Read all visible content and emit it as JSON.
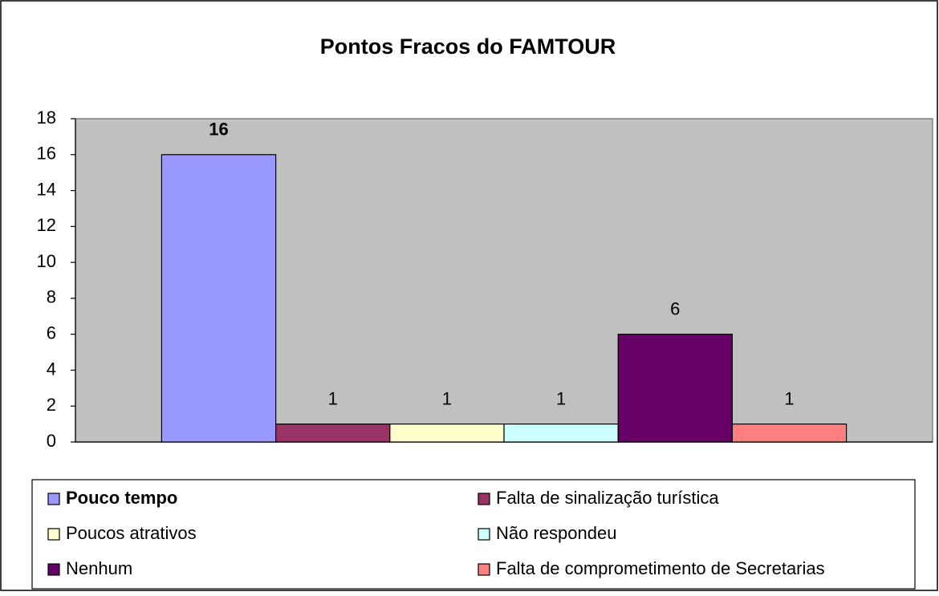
{
  "chart_data": {
    "type": "bar",
    "title": "Pontos Fracos do FAMTOUR",
    "series": [
      {
        "name": "Pouco tempo",
        "color": "#9999ff",
        "values": [
          16
        ]
      },
      {
        "name": "Falta de sinalização turística",
        "color": "#993366",
        "values": [
          1
        ]
      },
      {
        "name": "Poucos atrativos",
        "color": "#ffffcc",
        "values": [
          1
        ]
      },
      {
        "name": "Não respondeu",
        "color": "#ccffff",
        "values": [
          1
        ]
      },
      {
        "name": "Nenhum",
        "color": "#660066",
        "values": [
          6
        ]
      },
      {
        "name": "Falta de comprometimento de Secretarias",
        "color": "#ff8080",
        "values": [
          1
        ]
      }
    ],
    "ylim": [
      0,
      18
    ],
    "yticks": [
      0,
      2,
      4,
      6,
      8,
      10,
      12,
      14,
      16,
      18
    ],
    "grid": false,
    "plot_background": "#c0c0c0",
    "legend": "bottom"
  }
}
